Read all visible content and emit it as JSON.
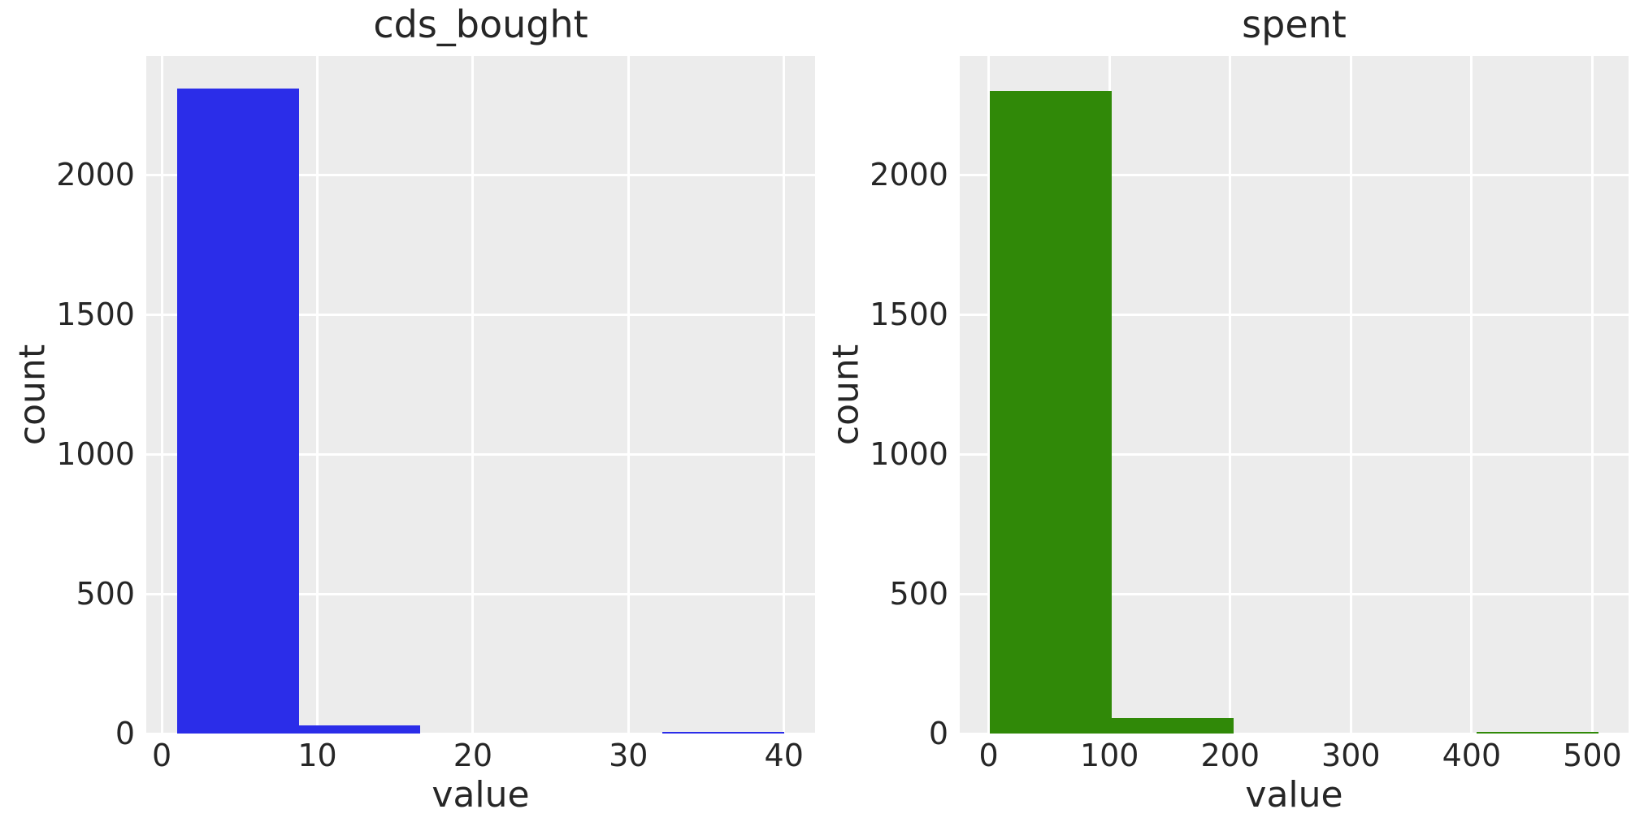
{
  "figure": {
    "background": "#ffffff",
    "plot_background": "#ececec",
    "grid_color": "#ffffff",
    "text_color": "#262626"
  },
  "chart_data": [
    {
      "type": "bar",
      "subtype": "histogram",
      "title": "cds_bought",
      "xlabel": "value",
      "ylabel": "count",
      "color_name": "blue",
      "bar_color": "#2b2de9",
      "grid": true,
      "legend": false,
      "xlim": [
        -1,
        42
      ],
      "ylim": [
        0,
        2425
      ],
      "xticks": [
        0,
        10,
        20,
        30,
        40
      ],
      "yticks": [
        0,
        500,
        1000,
        1500,
        2000
      ],
      "bin_edges": [
        1,
        8.8,
        16.6,
        24.4,
        32.2,
        40
      ],
      "counts": [
        2310,
        30,
        0,
        0,
        4
      ]
    },
    {
      "type": "bar",
      "subtype": "histogram",
      "title": "spent",
      "xlabel": "value",
      "ylabel": "count",
      "color_name": "green",
      "bar_color": "#308908",
      "grid": true,
      "legend": false,
      "xlim": [
        -24,
        530
      ],
      "ylim": [
        0,
        2425
      ],
      "xticks": [
        0,
        100,
        200,
        300,
        400,
        500
      ],
      "yticks": [
        0,
        500,
        1000,
        1500,
        2000
      ],
      "bin_edges": [
        1,
        101.8,
        202.6,
        303.4,
        404.2,
        505
      ],
      "counts": [
        2300,
        55,
        0,
        0,
        4
      ]
    }
  ]
}
